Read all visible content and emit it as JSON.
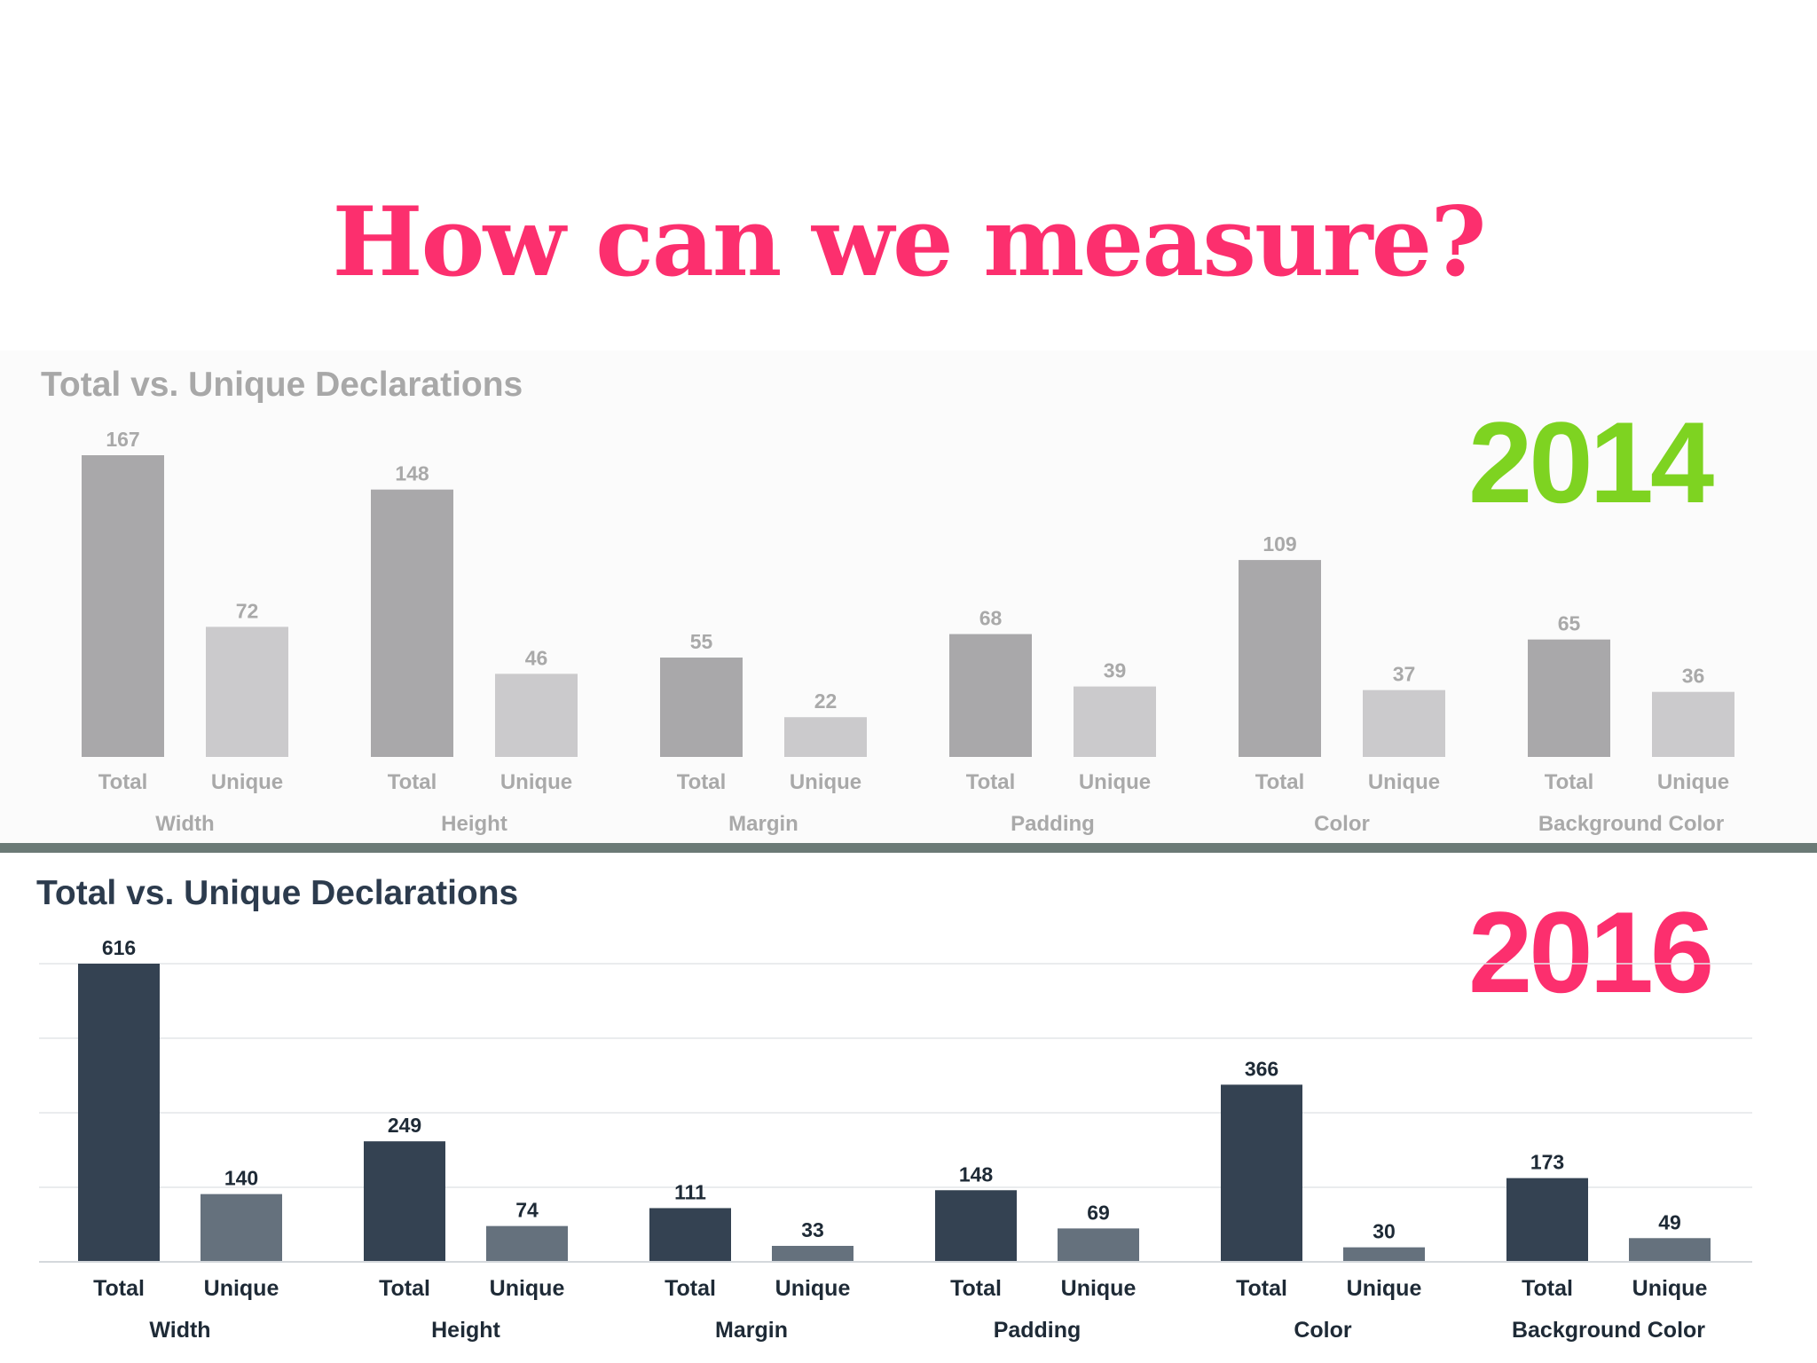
{
  "slide": {
    "title": "How can we measure?"
  },
  "chart_data": [
    {
      "type": "bar",
      "title": "Total vs. Unique Declarations",
      "year_label": "2014",
      "categories": [
        "Width",
        "Height",
        "Margin",
        "Padding",
        "Color",
        "Background Color"
      ],
      "sub_labels": [
        "Total",
        "Unique"
      ],
      "series": [
        {
          "name": "Total",
          "values": [
            167,
            148,
            55,
            68,
            109,
            65
          ]
        },
        {
          "name": "Unique",
          "values": [
            72,
            46,
            22,
            39,
            37,
            36
          ]
        }
      ],
      "ylim": [
        0,
        167
      ],
      "grid": false,
      "legend": "none",
      "colors": {
        "Total": "#a9a8aa",
        "Unique": "#cbcacc",
        "labels": "#a9a9a9"
      }
    },
    {
      "type": "bar",
      "title": "Total vs. Unique Declarations",
      "year_label": "2016",
      "categories": [
        "Width",
        "Height",
        "Margin",
        "Padding",
        "Color",
        "Background Color"
      ],
      "sub_labels": [
        "Total",
        "Unique"
      ],
      "series": [
        {
          "name": "Total",
          "values": [
            616,
            249,
            111,
            148,
            366,
            173
          ]
        },
        {
          "name": "Unique",
          "values": [
            140,
            74,
            33,
            69,
            30,
            49
          ]
        }
      ],
      "ylim": [
        0,
        616
      ],
      "grid": true,
      "legend": "none",
      "colors": {
        "Total": "#344252",
        "Unique": "#65717d",
        "labels": "#1e2a36"
      }
    }
  ]
}
